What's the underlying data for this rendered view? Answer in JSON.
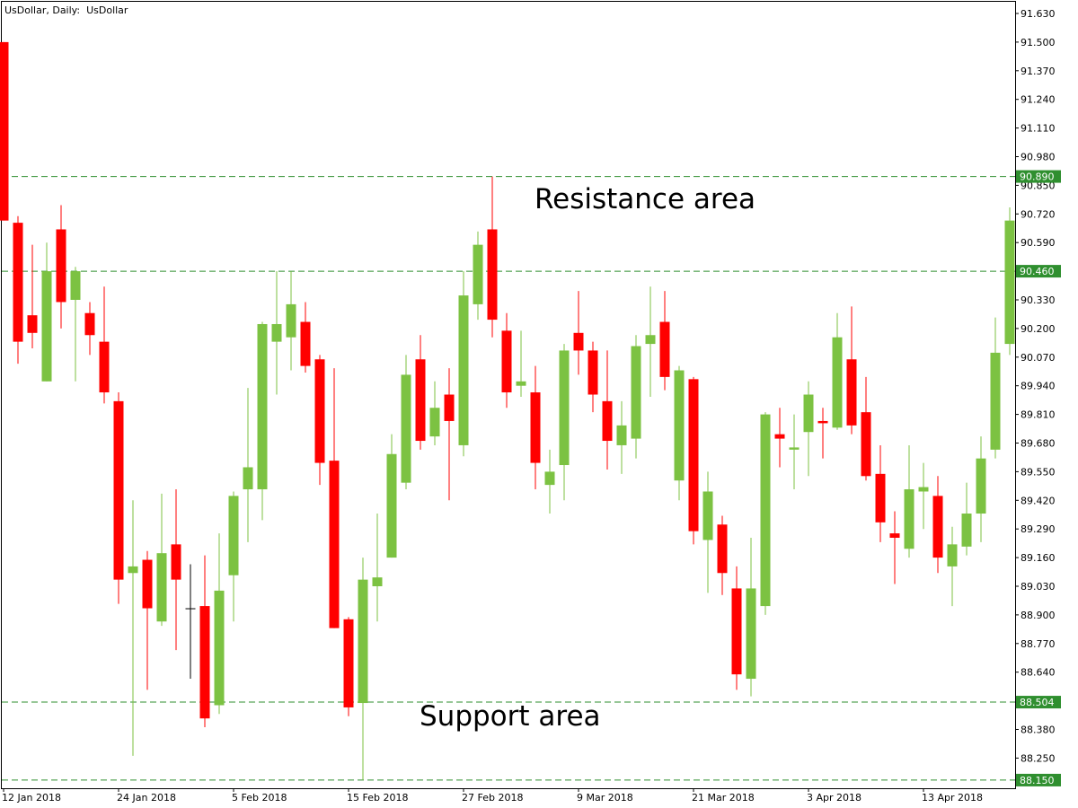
{
  "chart_data": {
    "type": "candlestick",
    "title": "UsDollar, Daily:  UsDollar",
    "categories": [
      "12 Jan 2018",
      null,
      null,
      null,
      null,
      null,
      null,
      null,
      "24 Jan 2018",
      null,
      null,
      null,
      null,
      null,
      null,
      null,
      "5 Feb 2018",
      null,
      null,
      null,
      null,
      null,
      null,
      null,
      "15 Feb 2018",
      null,
      null,
      null,
      null,
      null,
      null,
      null,
      "27 Feb 2018",
      null,
      null,
      null,
      null,
      null,
      null,
      null,
      "9 Mar 2018",
      null,
      null,
      null,
      null,
      null,
      null,
      null,
      "21 Mar 2018",
      null,
      null,
      null,
      null,
      null,
      null,
      null,
      "3 Apr 2018",
      null,
      null,
      null,
      null,
      null,
      null,
      null,
      "13 Apr 2018",
      null,
      null,
      null,
      null,
      null,
      null
    ],
    "open": [
      91.5,
      90.68,
      90.26,
      89.96,
      90.65,
      90.33,
      90.27,
      90.14,
      89.87,
      89.09,
      89.15,
      88.87,
      89.22,
      88.93,
      88.94,
      88.49,
      89.08,
      89.47,
      89.47,
      90.14,
      90.16,
      90.23,
      90.06,
      89.6,
      88.88,
      88.5,
      89.03,
      89.16,
      89.5,
      90.06,
      89.71,
      89.9,
      89.67,
      90.31,
      90.65,
      90.19,
      89.94,
      89.91,
      89.49,
      89.58,
      90.18,
      90.1,
      89.87,
      89.67,
      89.7,
      90.13,
      90.23,
      89.51,
      89.97,
      89.24,
      89.31,
      89.02,
      88.61,
      88.94,
      89.72,
      89.65,
      89.73,
      89.78,
      89.75,
      90.06,
      89.82,
      89.54,
      89.27,
      89.2,
      89.46,
      89.44,
      89.12,
      89.21,
      89.36,
      89.65,
      90.13
    ],
    "high": [
      91.5,
      90.71,
      90.58,
      90.59,
      90.76,
      90.48,
      90.32,
      90.39,
      89.91,
      89.42,
      89.19,
      89.45,
      89.47,
      89.13,
      89.17,
      89.27,
      89.46,
      89.93,
      90.23,
      90.46,
      90.46,
      90.32,
      90.08,
      90.02,
      88.89,
      89.16,
      89.36,
      89.72,
      90.08,
      90.17,
      89.96,
      90.02,
      90.46,
      90.64,
      90.89,
      90.27,
      90.19,
      90.03,
      89.65,
      90.13,
      90.37,
      90.14,
      90.1,
      89.87,
      90.17,
      90.39,
      90.37,
      90.03,
      89.98,
      89.55,
      89.35,
      89.12,
      89.25,
      89.82,
      89.84,
      89.81,
      89.96,
      89.84,
      90.27,
      90.3,
      89.98,
      89.67,
      89.37,
      89.67,
      89.59,
      89.53,
      89.3,
      89.5,
      89.71,
      90.25,
      90.75
    ],
    "low": [
      90.69,
      90.04,
      90.11,
      89.96,
      90.2,
      89.96,
      90.08,
      89.86,
      88.95,
      88.26,
      88.56,
      88.85,
      88.74,
      88.61,
      88.39,
      88.45,
      88.87,
      89.23,
      89.33,
      89.9,
      90.01,
      90.0,
      89.49,
      88.84,
      88.44,
      88.15,
      88.87,
      89.16,
      89.47,
      89.65,
      89.67,
      89.42,
      89.62,
      90.24,
      90.16,
      89.84,
      89.89,
      89.47,
      89.36,
      89.42,
      89.99,
      89.82,
      89.56,
      89.54,
      89.61,
      89.89,
      89.92,
      89.42,
      89.22,
      89.0,
      88.99,
      88.56,
      88.53,
      88.9,
      89.57,
      89.47,
      89.53,
      89.61,
      89.74,
      89.72,
      89.51,
      89.23,
      89.04,
      89.16,
      89.29,
      89.09,
      88.94,
      89.17,
      89.23,
      89.61,
      90.08
    ],
    "close": [
      90.69,
      90.14,
      90.18,
      90.46,
      90.32,
      90.46,
      90.17,
      89.91,
      89.06,
      89.12,
      88.93,
      89.18,
      89.06,
      88.93,
      88.43,
      89.01,
      89.44,
      89.57,
      90.22,
      90.22,
      90.31,
      90.03,
      89.59,
      88.84,
      88.48,
      89.06,
      89.07,
      89.63,
      89.99,
      89.69,
      89.84,
      89.78,
      90.35,
      90.58,
      90.24,
      89.91,
      89.96,
      89.59,
      89.55,
      90.1,
      90.1,
      89.9,
      89.69,
      89.76,
      90.12,
      90.17,
      89.98,
      90.01,
      89.28,
      89.46,
      89.09,
      88.63,
      89.02,
      89.81,
      89.7,
      89.66,
      89.9,
      89.77,
      90.16,
      89.76,
      89.53,
      89.32,
      89.25,
      89.47,
      89.48,
      89.16,
      89.22,
      89.36,
      89.61,
      90.09,
      90.69
    ],
    "up_color": "#7cc242",
    "down_color": "#ff0000",
    "doji_color": "#000000",
    "ylim": [
      88.113,
      91.683
    ],
    "yticks": [
      {
        "value": 91.63,
        "label": "91.630"
      },
      {
        "value": 91.5,
        "label": "91.500"
      },
      {
        "value": 91.37,
        "label": "91.370"
      },
      {
        "value": 91.24,
        "label": "91.240"
      },
      {
        "value": 91.11,
        "label": "91.110"
      },
      {
        "value": 90.98,
        "label": "90.980"
      },
      {
        "value": 90.85,
        "label": "90.850"
      },
      {
        "value": 90.72,
        "label": "90.720"
      },
      {
        "value": 90.59,
        "label": "90.590"
      },
      {
        "value": 90.33,
        "label": "90.330"
      },
      {
        "value": 90.2,
        "label": "90.200"
      },
      {
        "value": 90.07,
        "label": "90.070"
      },
      {
        "value": 89.94,
        "label": "89.940"
      },
      {
        "value": 89.81,
        "label": "89.810"
      },
      {
        "value": 89.68,
        "label": "89.680"
      },
      {
        "value": 89.55,
        "label": "89.550"
      },
      {
        "value": 89.42,
        "label": "89.420"
      },
      {
        "value": 89.29,
        "label": "89.290"
      },
      {
        "value": 89.16,
        "label": "89.160"
      },
      {
        "value": 89.03,
        "label": "89.030"
      },
      {
        "value": 88.9,
        "label": "88.900"
      },
      {
        "value": 88.77,
        "label": "88.770"
      },
      {
        "value": 88.64,
        "label": "88.640"
      },
      {
        "value": 88.38,
        "label": "88.380"
      },
      {
        "value": 88.25,
        "label": "88.250"
      }
    ],
    "levels": [
      {
        "value": 90.89,
        "label": "90.890"
      },
      {
        "value": 90.46,
        "label": "90.460"
      },
      {
        "value": 88.504,
        "label": "88.504"
      },
      {
        "value": 88.15,
        "label": "88.150"
      }
    ],
    "level_color": "#2f8f2f",
    "annotations": [
      "Resistance area",
      "Support area"
    ]
  }
}
